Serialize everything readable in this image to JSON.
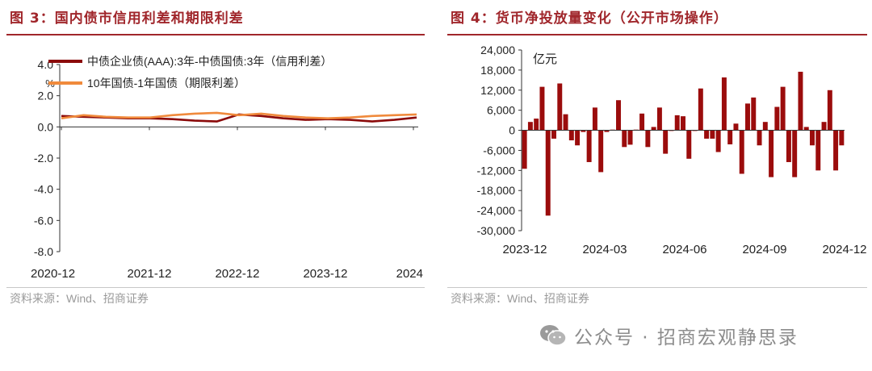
{
  "left": {
    "title": "图 3：国内债市信用利差和期限利差",
    "source": "资料来源：Wind、招商证券"
  },
  "right": {
    "title": "图 4：货币净投放量变化（公开市场操作）",
    "source": "资料来源：Wind、招商证券"
  },
  "watermark": {
    "text": "公众号 · 招商宏观静思录",
    "icon": "wechat-icon"
  },
  "chart_data": [
    {
      "type": "line",
      "title": "",
      "ylabel": "%",
      "xlabel": "",
      "ylim": [
        -8.0,
        4.0
      ],
      "yticks": [
        "4.0",
        "2.0",
        "0.0",
        "-2.0",
        "-4.0",
        "-6.0",
        "-8.0"
      ],
      "xticks": [
        "2020-12",
        "2021-12",
        "2022-12",
        "2023-12",
        "2024"
      ],
      "legend_position": "top-left",
      "grid": false,
      "x": [
        "2020-12",
        "2021-03",
        "2021-06",
        "2021-09",
        "2021-12",
        "2022-03",
        "2022-06",
        "2022-09",
        "2022-12",
        "2023-03",
        "2023-06",
        "2023-09",
        "2023-12",
        "2024-03",
        "2024-06",
        "2024-09",
        "2024-12"
      ],
      "series": [
        {
          "name": "中债企业债(AAA):3年-中债国债:3年（信用利差）",
          "color": "#8b0a0a",
          "values": [
            0.7,
            0.65,
            0.6,
            0.55,
            0.55,
            0.5,
            0.4,
            0.35,
            0.8,
            0.7,
            0.55,
            0.45,
            0.5,
            0.45,
            0.35,
            0.45,
            0.6
          ]
        },
        {
          "name": "10年国债-1年国债（期限利差）",
          "color": "#f08a3c",
          "values": [
            0.55,
            0.75,
            0.65,
            0.6,
            0.6,
            0.75,
            0.85,
            0.9,
            0.75,
            0.85,
            0.7,
            0.6,
            0.55,
            0.6,
            0.7,
            0.75,
            0.8
          ]
        }
      ]
    },
    {
      "type": "bar",
      "title": "",
      "ylabel": "亿元",
      "xlabel": "",
      "ylim": [
        -30000,
        24000
      ],
      "yticks": [
        "24,000",
        "18,000",
        "12,000",
        "6,000",
        "0",
        "-6,000",
        "-12,000",
        "-18,000",
        "-24,000",
        "-30,000"
      ],
      "xticks": [
        "2023-12",
        "2024-03",
        "2024-06",
        "2024-09",
        "2024-12"
      ],
      "color": "#9b0c0c",
      "grid": false,
      "values": [
        -11500,
        2500,
        3500,
        13000,
        -25500,
        -2500,
        14000,
        4800,
        -3000,
        -4500,
        -500,
        -9500,
        6800,
        -12500,
        -500,
        200,
        9000,
        -5000,
        -4300,
        200,
        5000,
        -5000,
        1000,
        6800,
        -7000,
        -200,
        4500,
        4200,
        -8500,
        -200,
        12500,
        -2500,
        -2500,
        -6500,
        15800,
        -4200,
        2000,
        -13000,
        8000,
        9800,
        -4500,
        2500,
        -14000,
        7000,
        13000,
        -9500,
        -14000,
        17500,
        1000,
        -4500,
        -12000,
        2500,
        12000,
        -12000,
        -4500
      ]
    }
  ]
}
